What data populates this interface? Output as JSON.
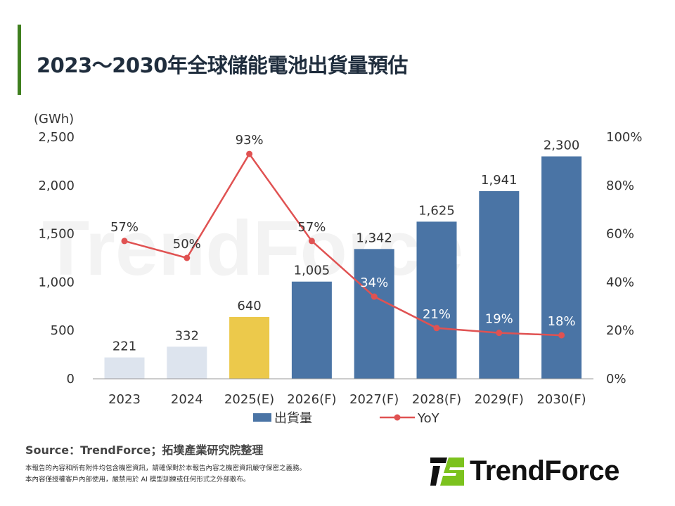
{
  "title": "2023～2030年全球儲能電池出貨量預估",
  "chart_data": {
    "type": "bar+line",
    "categories": [
      "2023",
      "2024",
      "2025(E)",
      "2026(F)",
      "2027(F)",
      "2028(F)",
      "2029(F)",
      "2030(F)"
    ],
    "series": [
      {
        "name": "出貨量",
        "type": "bar",
        "axis": "left",
        "values": [
          221,
          332,
          640,
          1005,
          1342,
          1625,
          1941,
          2300
        ],
        "labels": [
          "221",
          "332",
          "640",
          "1,005",
          "1,342",
          "1,625",
          "1,941",
          "2,300"
        ],
        "colors": [
          "#dde4ee",
          "#dde4ee",
          "#ecc94b",
          "#4a74a5",
          "#4a74a5",
          "#4a74a5",
          "#4a74a5",
          "#4a74a5"
        ]
      },
      {
        "name": "YoY",
        "type": "line",
        "axis": "right",
        "values": [
          57,
          50,
          93,
          57,
          34,
          21,
          19,
          18
        ],
        "labels": [
          "57%",
          "50%",
          "93%",
          "57%",
          "34%",
          "21%",
          "19%",
          "18%"
        ],
        "color": "#e05252"
      }
    ],
    "left_axis": {
      "unit": "(GWh)",
      "ylim": [
        0,
        2500
      ],
      "ticks": [
        "0",
        "500",
        "1,000",
        "1,500",
        "2,000",
        "2,500"
      ]
    },
    "right_axis": {
      "ylim": [
        0,
        100
      ],
      "ticks": [
        "0%",
        "20%",
        "40%",
        "60%",
        "80%",
        "100%"
      ]
    },
    "legend_position": "bottom",
    "grid": false
  },
  "footer": {
    "source": "Source：TrendForce；拓墣產業研究院整理",
    "note1": "本報告的內容和所有附件均包含機密資訊，請確保對於本報告內容之機密資訊嚴守保密之義務。",
    "note2": "本內容僅授權客戶內部使用，嚴禁用於 AI 模型訓練或任何形式之外部散布。"
  },
  "logo": {
    "text": "TrendForce",
    "colors": {
      "dark": "#111111",
      "green": "#7cc21e"
    }
  },
  "watermark": "TrendForce"
}
